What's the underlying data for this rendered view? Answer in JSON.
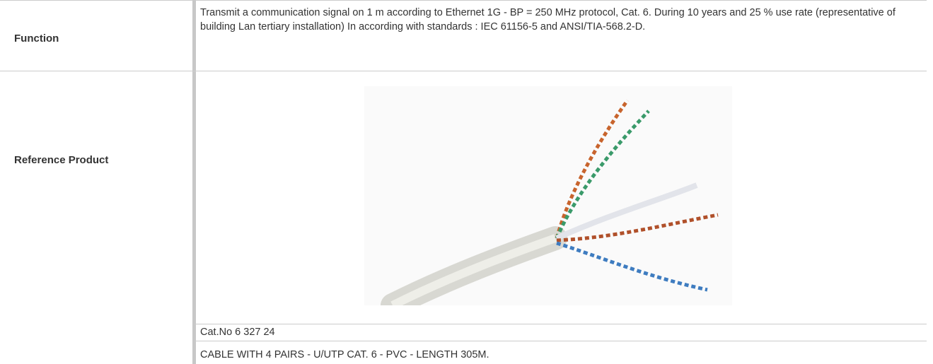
{
  "table": {
    "rows": [
      {
        "label": "Function",
        "cells": [
          "Transmit a communication signal on 1 m according to Ethernet 1G - BP = 250 MHz protocol, Cat. 6. During 10 years and 25 % use rate (representative of building Lan tertiary installation) In according with standards : IEC 61156-5 and ANSI/TIA-568.2-D."
        ]
      },
      {
        "label": "Reference Product",
        "cells": [
          "Cat.No 6 327 24",
          "CABLE WITH 4 PAIRS - U/UTP CAT. 6 - PVC - LENGTH 305M."
        ]
      }
    ]
  }
}
